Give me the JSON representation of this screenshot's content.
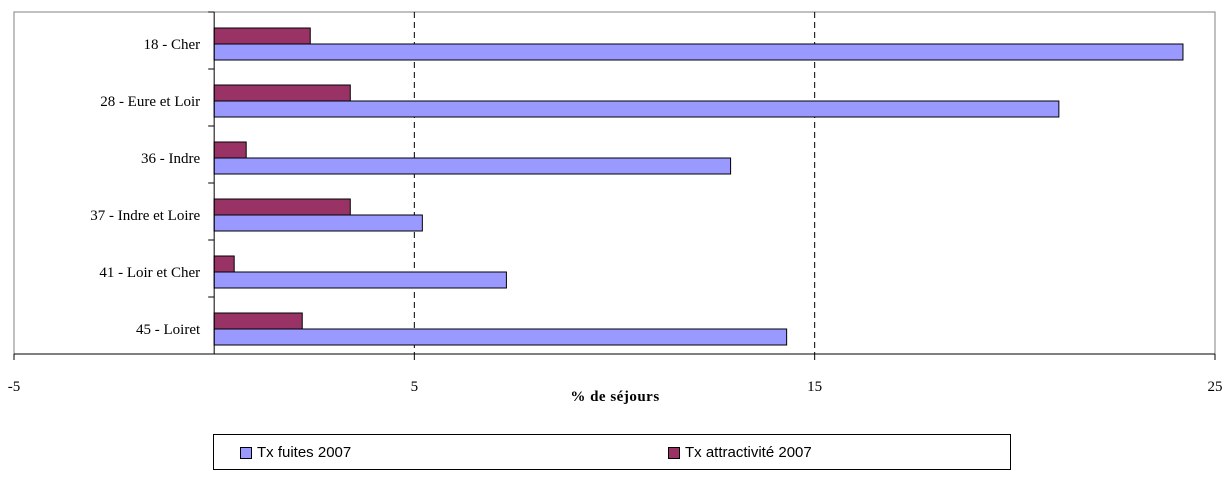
{
  "chart_data": {
    "type": "bar",
    "orientation": "horizontal",
    "categories": [
      "18 - Cher",
      "28 - Eure et Loir",
      "36 - Indre",
      "37 - Indre et Loire",
      "41 - Loir et Cher",
      "45 - Loiret"
    ],
    "series": [
      {
        "name": "Tx fuites 2007",
        "color": "#9999ff",
        "values": [
          24.2,
          21.1,
          12.9,
          5.2,
          7.3,
          14.3
        ]
      },
      {
        "name": "Tx attractivité 2007",
        "color": "#993366",
        "values": [
          2.4,
          3.4,
          0.8,
          3.4,
          0.5,
          2.2
        ]
      }
    ],
    "xlabel": "% de séjours",
    "xlim": [
      -5,
      25
    ],
    "xticks": [
      "-5",
      "5",
      "15",
      "25"
    ],
    "xtick_values": [
      -5,
      5,
      15,
      25
    ],
    "gridlines": [
      5,
      15
    ],
    "grid": "vertical-dashed",
    "legend_position": "bottom"
  }
}
